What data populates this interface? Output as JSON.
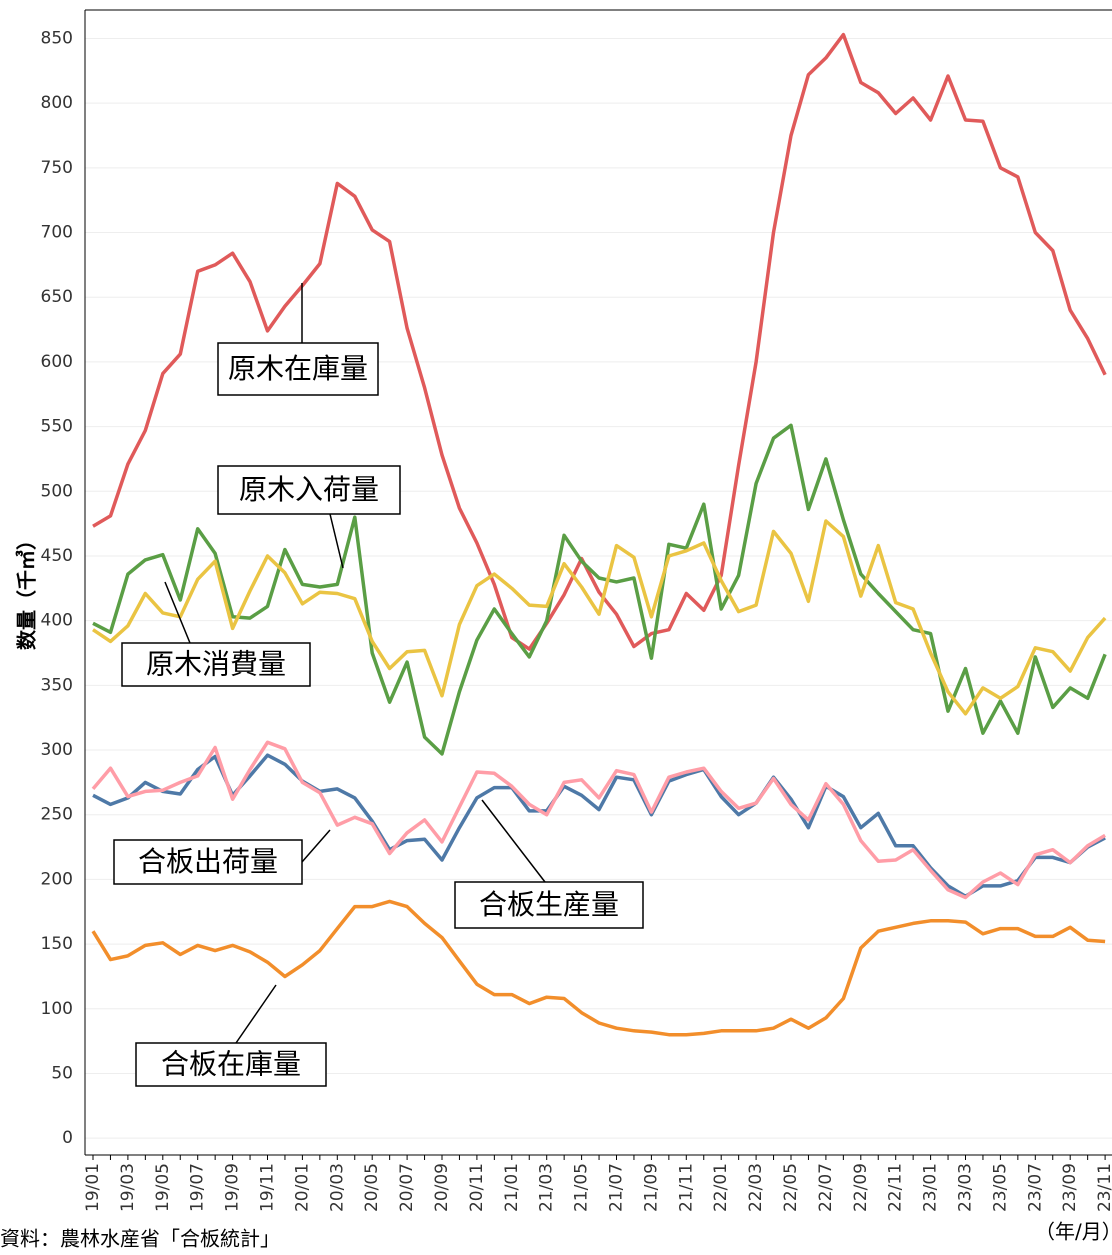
{
  "chart_data": {
    "type": "line",
    "y_label": "数量（千㎥）",
    "x_unit": "（年/月）",
    "source": "資料：農林水産省「合板統計」",
    "categories": [
      "19/01",
      null,
      "19/03",
      null,
      "19/05",
      null,
      "19/07",
      null,
      "19/09",
      null,
      "19/11",
      null,
      "20/01",
      null,
      "20/03",
      null,
      "20/05",
      null,
      "20/07",
      null,
      "20/09",
      null,
      "20/11",
      null,
      "21/01",
      null,
      "21/03",
      null,
      "21/05",
      null,
      "21/07",
      null,
      "21/09",
      null,
      "21/11",
      null,
      "22/01",
      null,
      "22/03",
      null,
      "22/05",
      null,
      "22/07",
      null,
      "22/09",
      null,
      "22/11",
      null,
      "23/01",
      null,
      "23/03",
      null,
      "23/05",
      null,
      "23/07",
      null,
      "23/09",
      null,
      "23/11"
    ],
    "series": [
      {
        "name": "原木在庫量",
        "color": "#e05a5a",
        "values": [
          473,
          481,
          521,
          547,
          591,
          606,
          670,
          675,
          684,
          662,
          624,
          643,
          659,
          676,
          738,
          728,
          702,
          693,
          626,
          580,
          528,
          487,
          460,
          428,
          387,
          378,
          398,
          420,
          448,
          422,
          405,
          380,
          390,
          393,
          421,
          408,
          435,
          520,
          600,
          700,
          775,
          822,
          835,
          853,
          816,
          808,
          792,
          804,
          787,
          821,
          787,
          786,
          750,
          743,
          700,
          686,
          640,
          618,
          590
        ]
      },
      {
        "name": "原木入荷量",
        "color": "#5a9e45",
        "values": [
          398,
          391,
          436,
          447,
          451,
          416,
          471,
          452,
          403,
          402,
          411,
          455,
          428,
          426,
          428,
          480,
          375,
          337,
          368,
          310,
          297,
          345,
          385,
          409,
          390,
          372,
          400,
          466,
          446,
          433,
          430,
          433,
          371,
          459,
          456,
          490,
          409,
          435,
          506,
          541,
          551,
          486,
          525,
          478,
          436,
          421,
          407,
          393,
          390,
          330,
          363,
          313,
          338,
          313,
          372,
          333,
          348,
          340,
          374
        ]
      },
      {
        "name": "原木消費量",
        "color": "#eac443",
        "values": [
          393,
          384,
          396,
          421,
          406,
          403,
          432,
          446,
          394,
          423,
          450,
          437,
          413,
          422,
          421,
          417,
          384,
          363,
          376,
          377,
          342,
          397,
          427,
          436,
          425,
          412,
          411,
          444,
          426,
          405,
          458,
          449,
          403,
          450,
          454,
          460,
          431,
          407,
          412,
          469,
          452,
          415,
          477,
          465,
          419,
          458,
          414,
          409,
          375,
          345,
          328,
          348,
          340,
          349,
          379,
          376,
          361,
          387,
          402
        ]
      },
      {
        "name": "合板出荷量",
        "color": "#4e79a7",
        "values": [
          265,
          258,
          263,
          275,
          268,
          266,
          285,
          295,
          265,
          280,
          296,
          289,
          276,
          268,
          270,
          263,
          245,
          223,
          230,
          231,
          215,
          240,
          263,
          271,
          271,
          253,
          253,
          272,
          265,
          254,
          279,
          277,
          250,
          276,
          281,
          285,
          264,
          250,
          259,
          279,
          262,
          240,
          272,
          264,
          240,
          251,
          226,
          226,
          209,
          195,
          187,
          195,
          195,
          199,
          217,
          217,
          213,
          225,
          232
        ]
      },
      {
        "name": "合板生産量",
        "color": "#ff9da7",
        "values": [
          270,
          286,
          264,
          268,
          269,
          275,
          280,
          302,
          262,
          285,
          306,
          301,
          275,
          267,
          242,
          248,
          243,
          220,
          236,
          246,
          229,
          256,
          283,
          282,
          272,
          258,
          250,
          275,
          277,
          263,
          284,
          281,
          252,
          279,
          283,
          286,
          268,
          255,
          259,
          278,
          258,
          246,
          274,
          258,
          230,
          214,
          215,
          223,
          207,
          192,
          186,
          198,
          205,
          196,
          219,
          223,
          213,
          226,
          234
        ]
      },
      {
        "name": "合板在庫量",
        "color": "#f28e2b",
        "values": [
          160,
          138,
          141,
          149,
          151,
          142,
          149,
          145,
          149,
          144,
          136,
          125,
          134,
          145,
          162,
          179,
          179,
          183,
          179,
          166,
          155,
          137,
          119,
          111,
          111,
          104,
          109,
          108,
          97,
          89,
          85,
          83,
          82,
          80,
          80,
          81,
          83,
          83,
          83,
          85,
          92,
          85,
          93,
          108,
          147,
          160,
          163,
          166,
          168,
          168,
          167,
          158,
          162,
          162,
          156,
          156,
          163,
          153,
          152
        ]
      }
    ],
    "ylim": [
      -13,
      872
    ],
    "yticks": [
      0,
      50,
      100,
      150,
      200,
      250,
      300,
      350,
      400,
      450,
      500,
      550,
      600,
      650,
      700,
      750,
      800,
      850
    ],
    "grid": true
  }
}
